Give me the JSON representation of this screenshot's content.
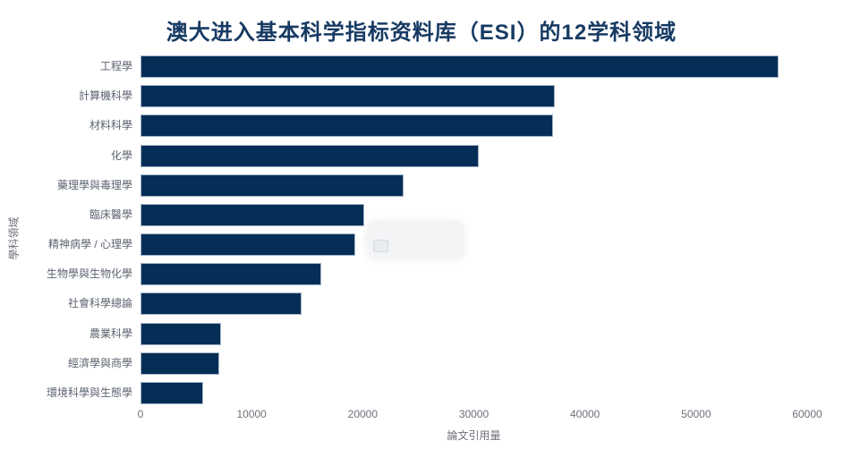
{
  "title": "澳大进入基本科学指标资料库（ESI）的12学科领域",
  "colors": {
    "bar_fill": "#052e56",
    "bar_border": "#a3b6ca",
    "title_text": "#173a63",
    "axis_text": "#6e7079",
    "tooltip_bg": "#f3f4f6"
  },
  "chart_data": {
    "type": "bar",
    "orientation": "horizontal",
    "title": "澳大进入基本科学指标资料库（ESI）的12学科领域",
    "categories": [
      "工程學",
      "計算機科學",
      "材料科學",
      "化學",
      "藥理學與毒理學",
      "臨床醫學",
      "精神病學 / 心理學",
      "生物學與生物化學",
      "社會科學總論",
      "農業科學",
      "經濟學與商學",
      "環境科學與生態學"
    ],
    "values": [
      57250,
      37150,
      37000,
      30250,
      23500,
      20000,
      19150,
      16100,
      14300,
      7100,
      6950,
      5450
    ],
    "xlabel": "論文引用量",
    "ylabel": "學科領域",
    "xlim": [
      0,
      60000
    ],
    "x_ticks": [
      "0",
      "10000",
      "20000",
      "30000",
      "40000",
      "50000",
      "60000"
    ],
    "grid": false,
    "legend": false
  },
  "tooltip": {
    "visible": true,
    "text": ""
  }
}
